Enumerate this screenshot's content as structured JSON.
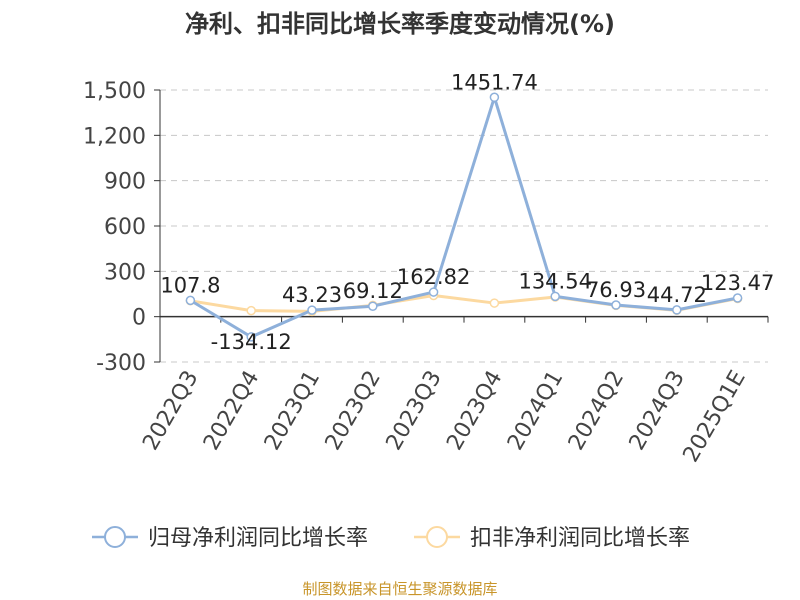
{
  "chart_data": {
    "type": "line",
    "title": "净利、扣非同比增长率季度变动情况(%)",
    "categories": [
      "2022Q3",
      "2022Q4",
      "2023Q1",
      "2023Q2",
      "2023Q3",
      "2023Q4",
      "2024Q1",
      "2024Q2",
      "2024Q3",
      "2025Q1E"
    ],
    "ylim": [
      -300,
      1500
    ],
    "yticks": [
      -300,
      0,
      300,
      600,
      900,
      1200,
      1500
    ],
    "ytick_labels": [
      "-300",
      "0",
      "300",
      "600",
      "900",
      "1,200",
      "1,500"
    ],
    "grid": true,
    "legend_position": "bottom",
    "series": [
      {
        "name": "归母净利润同比增长率",
        "color": "#8eb0da",
        "values": [
          107.8,
          -134.12,
          43.23,
          69.12,
          162.82,
          1451.74,
          134.54,
          76.93,
          44.72,
          123.47
        ],
        "labels": [
          "107.8",
          "-134.12",
          "43.23",
          "69.12",
          "162.82",
          "1451.74",
          "134.54",
          "76.93",
          "44.72",
          "123.47"
        ]
      },
      {
        "name": "扣非净利润同比增长率",
        "color": "#fcd9a0",
        "values": [
          105,
          40,
          35,
          75,
          140,
          90,
          130,
          75,
          42,
          120
        ]
      }
    ]
  },
  "footer": {
    "source": "制图数据来自恒生聚源数据库"
  }
}
